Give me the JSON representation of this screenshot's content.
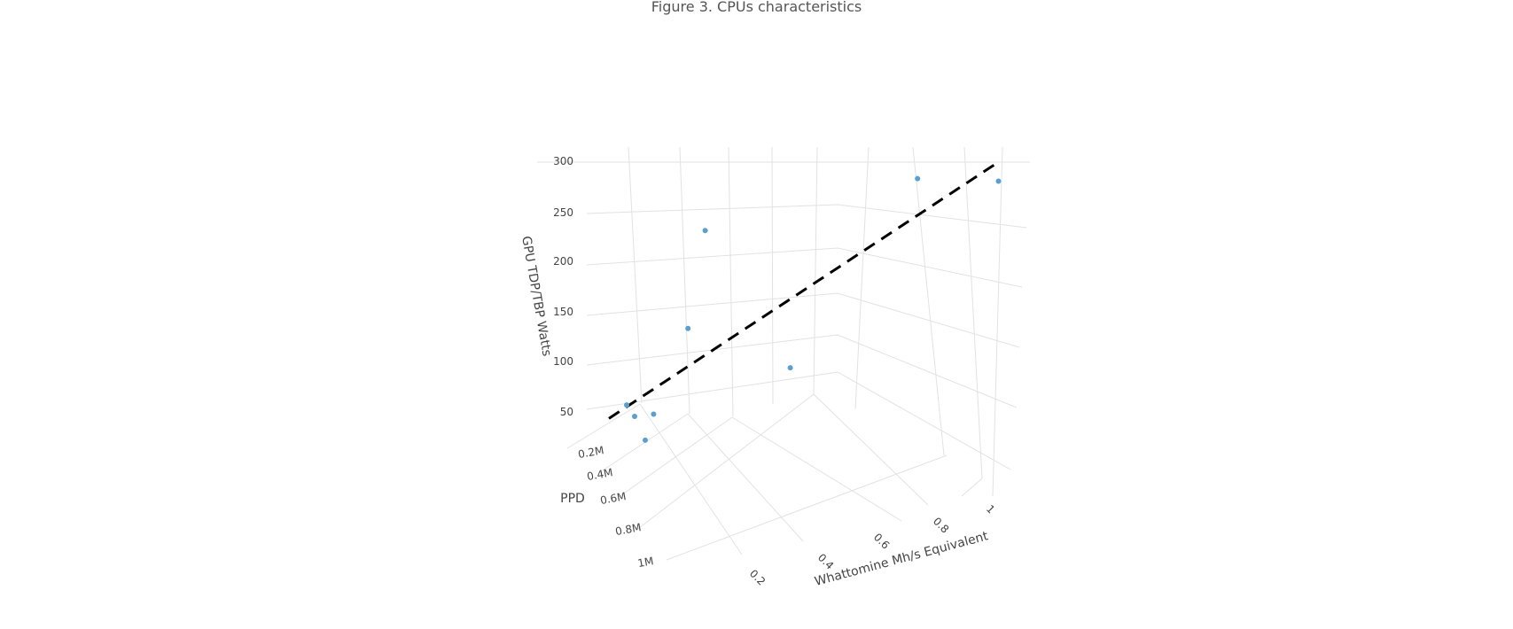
{
  "title": "Figure 3. CPUs characteristics",
  "colors": {
    "marker": "#5a9fcf",
    "trend": "#000000",
    "grid": "#e2e2e2"
  },
  "chart_data": {
    "type": "scatter3d",
    "title": "Figure 3. CPUs characteristics",
    "x_axis": {
      "label": "Whattomine Mh/s Equivalent",
      "ticks": [
        "0.2",
        "0.4",
        "0.6",
        "0.8",
        "1"
      ]
    },
    "y_axis": {
      "label": "PPD",
      "ticks": [
        "0.2M",
        "0.4M",
        "0.6M",
        "0.8M",
        "1M"
      ]
    },
    "z_axis": {
      "label": "GPU TDP/TBP Watts",
      "ticks": [
        "50",
        "100",
        "150",
        "200",
        "250",
        "300"
      ]
    },
    "grid": true,
    "points": [
      {
        "x": 0.04,
        "y": 0.12,
        "z": 65
      },
      {
        "x": 0.07,
        "y": 0.26,
        "z": 58
      },
      {
        "x": 0.1,
        "y": 0.3,
        "z": 35
      },
      {
        "x": 0.12,
        "y": 0.28,
        "z": 60
      },
      {
        "x": 0.2,
        "y": 0.16,
        "z": 140
      },
      {
        "x": 0.24,
        "y": 0.1,
        "z": 235
      },
      {
        "x": 0.48,
        "y": 0.42,
        "z": 105
      },
      {
        "x": 0.82,
        "y": 0.62,
        "z": 295
      },
      {
        "x": 1.05,
        "y": 0.95,
        "z": 300
      }
    ],
    "trend_line": {
      "style": "dashed",
      "from": {
        "x": 0.0,
        "y": 0.2,
        "z": 55
      },
      "to": {
        "x": 1.05,
        "y": 1.0,
        "z": 320
      }
    }
  }
}
